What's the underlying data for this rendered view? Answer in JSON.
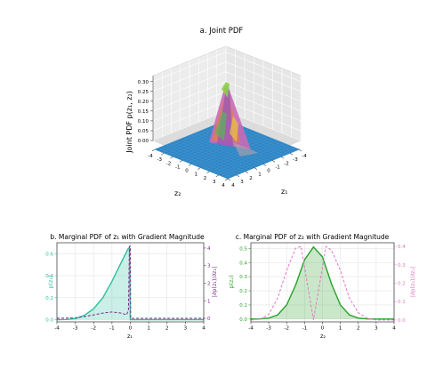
{
  "chart_data": [
    {
      "type": "surface3d",
      "title": "a. Joint PDF",
      "xlabel": "z₁",
      "ylabel": "z₂",
      "zlabel": "Joint PDF p(z₁, z₂)",
      "x_ticks": [
        -4,
        -3,
        -2,
        -1,
        0,
        1,
        2,
        3,
        4
      ],
      "y_ticks": [
        -4,
        -3,
        -2,
        -1,
        0,
        1,
        2,
        3,
        4
      ],
      "z_ticks": [
        "0.00",
        "0.05",
        "0.10",
        "0.15",
        "0.20",
        "0.25",
        "0.30"
      ],
      "xlim": [
        -4,
        4
      ],
      "ylim": [
        -4,
        4
      ],
      "zlim": [
        0,
        0.33
      ],
      "peak": {
        "z1": -0.5,
        "z2": -0.5,
        "value": 0.32
      },
      "grid": true
    },
    {
      "type": "line",
      "title": "b. Marginal PDF of z₁ with Gradient Magnitude",
      "xlabel": "z₁",
      "ylabel": "p(z₁)",
      "y2label": "|∂p(z₁)/∂z₁|",
      "x_ticks": [
        -4,
        -3,
        -2,
        -1,
        0,
        1,
        2,
        3,
        4
      ],
      "y_ticks": [
        "0.0",
        "0.2",
        "0.4",
        "0.6"
      ],
      "y2_ticks": [
        "0",
        "1",
        "2",
        "3",
        "4"
      ],
      "xlim": [
        -4,
        4
      ],
      "ylim": [
        -0.02,
        0.7
      ],
      "y2lim": [
        -0.2,
        4.3
      ],
      "series": [
        {
          "axis": "left",
          "style": "solid-filled",
          "color": "#2bbf9e",
          "x": [
            -4.0,
            -3.5,
            -3.0,
            -2.5,
            -2.0,
            -1.5,
            -1.0,
            -0.5,
            -0.2,
            -0.1,
            -0.05,
            0.0,
            0.5,
            1,
            2,
            3,
            4
          ],
          "y": [
            0.0,
            0.002,
            0.01,
            0.04,
            0.1,
            0.2,
            0.35,
            0.52,
            0.62,
            0.65,
            0.655,
            0.0,
            0.0,
            0.0,
            0.0,
            0.0,
            0.0
          ]
        },
        {
          "axis": "right",
          "style": "dashed",
          "color": "#7b2a8a",
          "x": [
            -4.0,
            -3.0,
            -2.5,
            -2.0,
            -1.5,
            -1.0,
            -0.5,
            -0.2,
            -0.1,
            -0.05,
            -0.02,
            0.0,
            0.02,
            0.5,
            1,
            2,
            3,
            4
          ],
          "y": [
            0.0,
            0.03,
            0.1,
            0.2,
            0.3,
            0.36,
            0.3,
            0.2,
            0.5,
            4.1,
            4.1,
            4.1,
            0.0,
            0.0,
            0.0,
            0.0,
            0.0,
            0.0
          ]
        }
      ],
      "grid": true
    },
    {
      "type": "line",
      "title": "c. Marginal PDF of z₂ with Gradient Magnitude",
      "xlabel": "z₂",
      "ylabel": "p(z₂)",
      "y2label": "|∂p(z₂)/∂z₂|",
      "x_ticks": [
        -4,
        -3,
        -2,
        -1,
        0,
        1,
        2,
        3,
        4
      ],
      "y_ticks": [
        "0.0",
        "0.1",
        "0.2",
        "0.3",
        "0.4",
        "0.5"
      ],
      "y2_ticks": [
        "0.0",
        "0.1",
        "0.2",
        "0.3",
        "0.4"
      ],
      "xlim": [
        -4,
        4
      ],
      "ylim": [
        -0.02,
        0.54
      ],
      "y2lim": [
        -0.01,
        0.42
      ],
      "series": [
        {
          "axis": "left",
          "style": "solid-filled",
          "color": "#2ca02c",
          "x": [
            -4,
            -3.5,
            -3,
            -2.5,
            -2,
            -1.5,
            -1,
            -0.5,
            0,
            0.5,
            1,
            1.5,
            2,
            2.5,
            3,
            3.5,
            4
          ],
          "y": [
            0.0,
            0.001,
            0.007,
            0.03,
            0.1,
            0.24,
            0.42,
            0.51,
            0.44,
            0.25,
            0.1,
            0.03,
            0.007,
            0.001,
            0.0,
            0.0,
            0.0
          ]
        },
        {
          "axis": "right",
          "style": "dashed",
          "color": "#e377c2",
          "x": [
            -4,
            -3.5,
            -3,
            -2.5,
            -2,
            -1.5,
            -1.2,
            -0.5,
            0.2,
            0.5,
            1,
            1.5,
            2,
            2.5,
            3,
            3.5,
            4
          ],
          "y": [
            0.0,
            0.005,
            0.03,
            0.12,
            0.27,
            0.39,
            0.4,
            0.0,
            0.4,
            0.38,
            0.27,
            0.12,
            0.04,
            0.01,
            0.0,
            0.0,
            0.0
          ]
        }
      ],
      "grid": true
    }
  ]
}
